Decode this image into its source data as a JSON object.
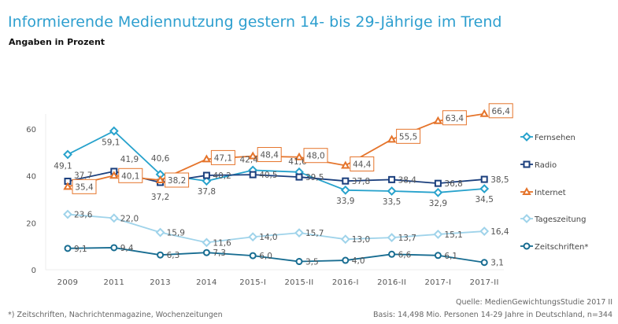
{
  "header": {
    "title": "Informierende Mediennutzung gestern 14- bis 29-Jährige im Trend",
    "subtitle": "Angaben in Prozent"
  },
  "footer": {
    "footnote": "*) Zeitschriften, Nachrichtenmagazine, Wochenzeitungen",
    "source": "Quelle: MedienGewichtungsStudie 2017 II",
    "basis": "Basis: 14,498 Mio. Personen 14-29 Jahre in Deutschland, n=344"
  },
  "chart_data": {
    "type": "line",
    "title": "Informierende Mediennutzung gestern 14- bis 29-Jährige im Trend",
    "subtitle": "Angaben in Prozent",
    "xlabel": "",
    "ylabel": "",
    "categories": [
      "2009",
      "2011",
      "2013",
      "2014",
      "2015-I",
      "2015-II",
      "2016-I",
      "2016-II",
      "2017-I",
      "2017-II"
    ],
    "ylim": [
      0,
      70
    ],
    "yticks": [
      0,
      20,
      40,
      60
    ],
    "grid": false,
    "legend_position": "right",
    "series": [
      {
        "name": "Fernsehen",
        "color": "#27a2cc",
        "marker": "diamond",
        "labels": [
          "49,1",
          "59,1",
          "40,6",
          "37,8",
          "42,4",
          "41,6",
          "33,9",
          "33,5",
          "32,9",
          "34,5"
        ],
        "values": [
          49.1,
          59.1,
          40.6,
          37.8,
          42.4,
          41.6,
          33.9,
          33.5,
          32.9,
          34.5
        ]
      },
      {
        "name": "Radio",
        "color": "#1b3f7d",
        "marker": "square",
        "labels": [
          "37,7",
          "41,9",
          "37,2",
          "40,2",
          "40,5",
          "39,5",
          "37,8",
          "38,4",
          "36,8",
          "38,5"
        ],
        "values": [
          37.7,
          41.9,
          37.2,
          40.2,
          40.5,
          39.5,
          37.8,
          38.4,
          36.8,
          38.5
        ]
      },
      {
        "name": "Internet",
        "color": "#e5742b",
        "marker": "triangle",
        "boxed": true,
        "labels": [
          "35,4",
          "40,1",
          "38,2",
          "47,1",
          "48,4",
          "48,0",
          "44,4",
          "55,5",
          "63,4",
          "66,4"
        ],
        "values": [
          35.4,
          40.1,
          38.2,
          47.1,
          48.4,
          48.0,
          44.4,
          55.5,
          63.4,
          66.4
        ]
      },
      {
        "name": "Tageszeitung",
        "color": "#9fd3ea",
        "marker": "diamond",
        "labels": [
          "23,6",
          "22,0",
          "15,9",
          "11,6",
          "14,0",
          "15,7",
          "13,0",
          "13,7",
          "15,1",
          "16,4"
        ],
        "values": [
          23.6,
          22.0,
          15.9,
          11.6,
          14.0,
          15.7,
          13.0,
          13.7,
          15.1,
          16.4
        ]
      },
      {
        "name": "Zeitschriften*",
        "color": "#176c91",
        "marker": "circle",
        "labels": [
          "9,1",
          "9,4",
          "6,3",
          "7,3",
          "6,0",
          "3,5",
          "4,0",
          "6,6",
          "6,1",
          "3,1"
        ],
        "values": [
          9.1,
          9.4,
          6.3,
          7.3,
          6.0,
          3.5,
          4.0,
          6.6,
          6.1,
          3.1
        ]
      }
    ]
  }
}
